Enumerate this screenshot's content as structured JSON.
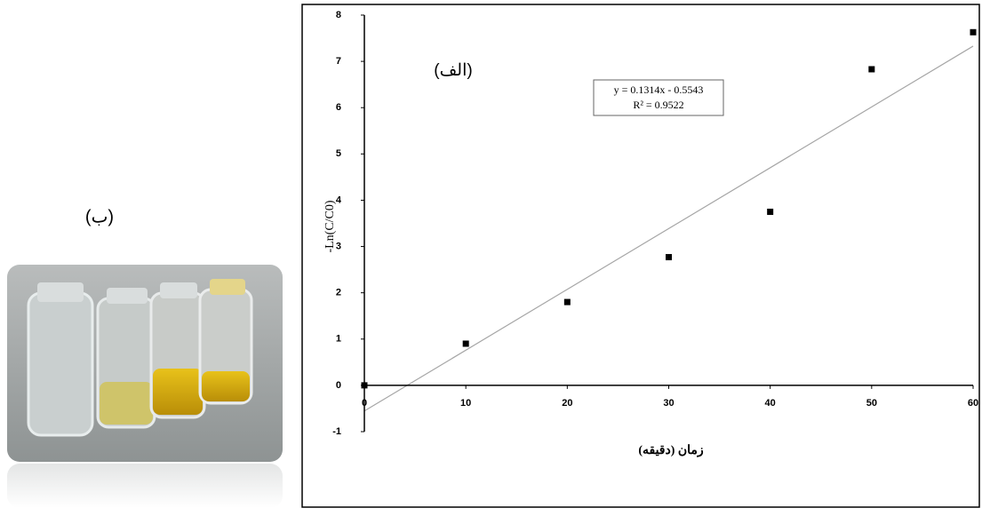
{
  "panel_label": "(ب)",
  "chart_data": {
    "type": "scatter",
    "annotation": "(الف)",
    "x_label": "زمان (دقیقه)",
    "y_label": "-Ln(C/C0)",
    "x": [
      0,
      10,
      20,
      30,
      40,
      50,
      60
    ],
    "values": [
      0,
      0.9,
      1.8,
      2.77,
      3.75,
      6.83,
      7.63
    ],
    "color": "#000000",
    "xlim": [
      0,
      60
    ],
    "ylim": [
      -1,
      8
    ],
    "xticks": [
      0,
      10,
      20,
      30,
      40,
      50,
      60
    ],
    "yticks": [
      -1,
      0,
      1,
      2,
      3,
      4,
      5,
      6,
      7,
      8
    ],
    "trendline": {
      "slope": 0.1314,
      "intercept": -0.5543,
      "color": "#a6a6a6",
      "label": "y = 0.1314x - 0.5543",
      "r2_label": "R² = 0.9522"
    }
  }
}
